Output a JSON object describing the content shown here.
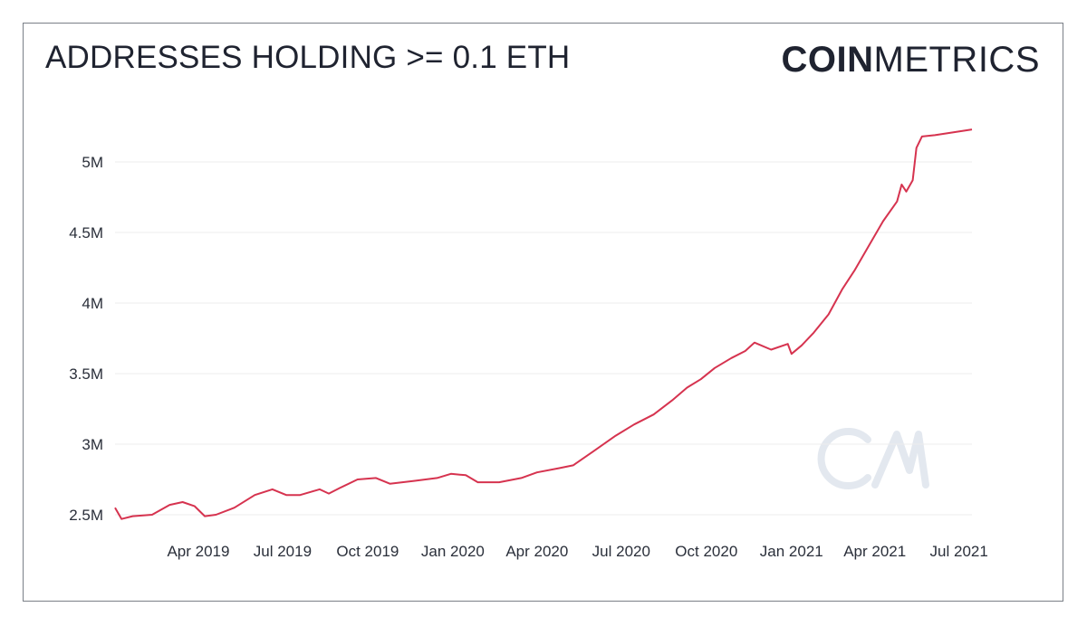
{
  "title": "ADDRESSES HOLDING >= 0.1 ETH",
  "logo": {
    "bold_part": "COIN",
    "light_part": "METRICS"
  },
  "chart_data": {
    "type": "line",
    "title": "ADDRESSES HOLDING >= 0.1 ETH",
    "xlabel": "",
    "ylabel": "",
    "grid": "horizontal",
    "xlim": [
      "2019-01-01",
      "2021-07-15"
    ],
    "ylim": [
      2500000,
      5250000
    ],
    "y_ticks": [
      {
        "value": 2500000,
        "label": "2.5M"
      },
      {
        "value": 3000000,
        "label": "3M"
      },
      {
        "value": 3500000,
        "label": "3.5M"
      },
      {
        "value": 4000000,
        "label": "4M"
      },
      {
        "value": 4500000,
        "label": "4.5M"
      },
      {
        "value": 5000000,
        "label": "5M"
      }
    ],
    "x_ticks": [
      {
        "value": "2019-04-01",
        "label": "Apr 2019"
      },
      {
        "value": "2019-07-01",
        "label": "Jul 2019"
      },
      {
        "value": "2019-10-01",
        "label": "Oct 2019"
      },
      {
        "value": "2020-01-01",
        "label": "Jan 2020"
      },
      {
        "value": "2020-04-01",
        "label": "Apr 2020"
      },
      {
        "value": "2020-07-01",
        "label": "Jul 2020"
      },
      {
        "value": "2020-10-01",
        "label": "Oct 2020"
      },
      {
        "value": "2021-01-01",
        "label": "Jan 2021"
      },
      {
        "value": "2021-04-01",
        "label": "Apr 2021"
      },
      {
        "value": "2021-07-01",
        "label": "Jul 2021"
      }
    ],
    "series": [
      {
        "color": "#d6334f",
        "points": [
          [
            "2019-01-01",
            2550000
          ],
          [
            "2019-01-08",
            2470000
          ],
          [
            "2019-01-20",
            2490000
          ],
          [
            "2019-02-10",
            2500000
          ],
          [
            "2019-03-01",
            2570000
          ],
          [
            "2019-03-15",
            2590000
          ],
          [
            "2019-03-28",
            2560000
          ],
          [
            "2019-04-08",
            2490000
          ],
          [
            "2019-04-20",
            2500000
          ],
          [
            "2019-05-10",
            2550000
          ],
          [
            "2019-06-01",
            2640000
          ],
          [
            "2019-06-20",
            2680000
          ],
          [
            "2019-07-05",
            2640000
          ],
          [
            "2019-07-20",
            2640000
          ],
          [
            "2019-08-10",
            2680000
          ],
          [
            "2019-08-20",
            2650000
          ],
          [
            "2019-09-01",
            2690000
          ],
          [
            "2019-09-20",
            2750000
          ],
          [
            "2019-10-10",
            2760000
          ],
          [
            "2019-10-25",
            2720000
          ],
          [
            "2019-11-20",
            2740000
          ],
          [
            "2019-12-15",
            2760000
          ],
          [
            "2019-12-30",
            2790000
          ],
          [
            "2020-01-15",
            2780000
          ],
          [
            "2020-01-28",
            2730000
          ],
          [
            "2020-02-20",
            2730000
          ],
          [
            "2020-03-15",
            2760000
          ],
          [
            "2020-04-01",
            2800000
          ],
          [
            "2020-04-25",
            2830000
          ],
          [
            "2020-05-10",
            2850000
          ],
          [
            "2020-06-01",
            2950000
          ],
          [
            "2020-06-25",
            3060000
          ],
          [
            "2020-07-15",
            3140000
          ],
          [
            "2020-08-05",
            3210000
          ],
          [
            "2020-08-25",
            3310000
          ],
          [
            "2020-09-10",
            3400000
          ],
          [
            "2020-09-25",
            3460000
          ],
          [
            "2020-10-10",
            3540000
          ],
          [
            "2020-10-28",
            3610000
          ],
          [
            "2020-11-12",
            3660000
          ],
          [
            "2020-11-22",
            3720000
          ],
          [
            "2020-12-10",
            3670000
          ],
          [
            "2020-12-28",
            3710000
          ],
          [
            "2021-01-01",
            3640000
          ],
          [
            "2021-01-12",
            3700000
          ],
          [
            "2021-01-25",
            3790000
          ],
          [
            "2021-02-10",
            3920000
          ],
          [
            "2021-02-25",
            4100000
          ],
          [
            "2021-03-10",
            4230000
          ],
          [
            "2021-03-25",
            4400000
          ],
          [
            "2021-04-10",
            4580000
          ],
          [
            "2021-04-25",
            4720000
          ],
          [
            "2021-04-30",
            4840000
          ],
          [
            "2021-05-05",
            4790000
          ],
          [
            "2021-05-12",
            4870000
          ],
          [
            "2021-05-16",
            5100000
          ],
          [
            "2021-05-22",
            5180000
          ],
          [
            "2021-06-05",
            5190000
          ],
          [
            "2021-06-25",
            5210000
          ],
          [
            "2021-07-15",
            5230000
          ]
        ]
      }
    ]
  }
}
